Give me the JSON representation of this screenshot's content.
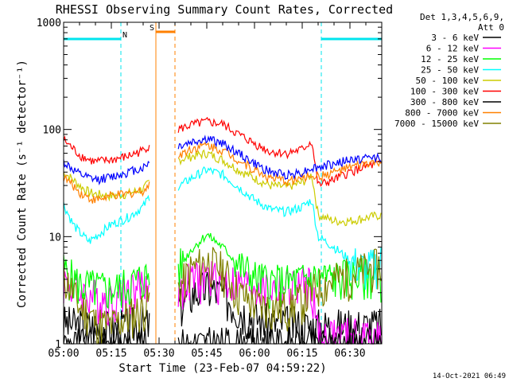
{
  "chart_data": {
    "type": "line",
    "title": "RHESSI Observing Summary Count Rates, Corrected",
    "xlabel": "Start Time (23-Feb-07 04:59:22)",
    "ylabel": "Corrected Count Rate (s⁻¹ detector⁻¹)",
    "yscale": "log",
    "ylim": [
      1,
      1000
    ],
    "xlim_minutes": [
      0,
      100
    ],
    "x_ticks": [
      "05:00",
      "05:15",
      "05:30",
      "05:45",
      "06:00",
      "06:15",
      "06:30"
    ],
    "x_tick_minutes": [
      0,
      15,
      30,
      45,
      60,
      75,
      90
    ],
    "y_ticks": [
      "1",
      "10",
      "100",
      "1000"
    ],
    "y_tick_values": [
      1,
      10,
      100,
      1000
    ],
    "legend": {
      "position": "right",
      "header": [
        "Det 1,3,4,5,6,9,",
        "Att 0"
      ]
    },
    "flags": [
      {
        "label": "N",
        "color": "#00e5ee",
        "ranges_minutes": [
          [
            0,
            18
          ],
          [
            81,
            100
          ]
        ]
      },
      {
        "label": "S",
        "color": "#ff8000",
        "ranges_minutes": [
          [
            29,
            35
          ]
        ]
      }
    ],
    "timestamp": "14-Oct-2021 06:49",
    "series": [
      {
        "name": "3 - 6 keV",
        "color": "#000000",
        "x": [
          0,
          5,
          10,
          15,
          20,
          25,
          27,
          36,
          40,
          45,
          50,
          55,
          60,
          65,
          70,
          75,
          78,
          80
        ],
        "y": [
          1.6,
          1.5,
          1.5,
          1.4,
          1.5,
          1.6,
          1.5,
          2.2,
          3.0,
          3.4,
          3.0,
          2.2,
          1.8,
          1.6,
          1.6,
          1.5,
          1.5,
          1.5
        ]
      },
      {
        "name": "6 - 12 keV",
        "color": "#ff00ff",
        "x": [
          0,
          5,
          10,
          15,
          20,
          25,
          27,
          36,
          40,
          45,
          50,
          55,
          60,
          65,
          70,
          75,
          78,
          80
        ],
        "y": [
          4.0,
          3.0,
          2.8,
          2.6,
          3.2,
          3.6,
          3.6,
          3.4,
          4.0,
          4.3,
          4.0,
          3.6,
          3.5,
          3.2,
          3.4,
          3.6,
          3.6,
          1.2
        ]
      },
      {
        "name": "12 - 25 keV",
        "color": "#00ff00",
        "x": [
          0,
          5,
          10,
          15,
          20,
          25,
          27,
          36,
          40,
          45,
          50,
          55,
          60,
          65,
          70,
          75,
          80,
          85,
          90,
          95,
          100
        ],
        "y": [
          5.0,
          3.6,
          3.4,
          3.2,
          3.6,
          4.2,
          4.4,
          5.0,
          7.5,
          10.5,
          8.0,
          5.5,
          4.2,
          3.8,
          3.8,
          4.0,
          4.2,
          4.2,
          4.3,
          4.4,
          4.4
        ]
      },
      {
        "name": "25 - 50 keV",
        "color": "#00ffff",
        "x": [
          0,
          3,
          5,
          8,
          10,
          15,
          20,
          25,
          27,
          36,
          40,
          45,
          50,
          55,
          60,
          65,
          70,
          75,
          78,
          80,
          85,
          90,
          95,
          100
        ],
        "y": [
          20,
          13,
          11,
          9,
          10,
          13,
          15,
          19,
          24,
          29,
          35,
          42,
          38,
          29,
          22,
          18,
          17,
          19,
          22,
          10,
          8,
          6,
          5,
          6
        ]
      },
      {
        "name": "50 - 100 keV",
        "color": "#cccc00",
        "x": [
          0,
          3,
          5,
          8,
          10,
          15,
          20,
          25,
          27,
          36,
          40,
          45,
          50,
          55,
          60,
          65,
          70,
          75,
          78,
          80,
          85,
          90,
          95,
          100
        ],
        "y": [
          40,
          34,
          30,
          26,
          25,
          24,
          25,
          28,
          32,
          52,
          56,
          60,
          52,
          42,
          35,
          30,
          29,
          32,
          38,
          16,
          14,
          14,
          15,
          16
        ]
      },
      {
        "name": "100 - 300 keV",
        "color": "#ff0000",
        "x": [
          0,
          3,
          5,
          8,
          10,
          15,
          20,
          25,
          27,
          36,
          40,
          45,
          50,
          55,
          60,
          65,
          70,
          75,
          78,
          80,
          85,
          90,
          95,
          100
        ],
        "y": [
          80,
          66,
          58,
          52,
          50,
          52,
          56,
          64,
          72,
          100,
          110,
          118,
          112,
          90,
          74,
          62,
          60,
          65,
          78,
          30,
          34,
          40,
          45,
          48
        ]
      },
      {
        "name": "300 - 800 keV",
        "color": "#000000",
        "x": [
          0,
          25,
          27,
          36,
          80,
          100
        ],
        "y": [
          1.0,
          1.0,
          1.0,
          1.0,
          1.0,
          1.0
        ]
      },
      {
        "name": "800 - 7000 keV",
        "color": "#ff8000",
        "x": [
          0,
          3,
          5,
          8,
          10,
          15,
          20,
          25,
          27,
          36,
          40,
          45,
          50,
          55,
          60,
          65,
          70,
          75,
          78,
          80,
          85,
          90,
          95,
          100
        ],
        "y": [
          36,
          30,
          26,
          23,
          22,
          24,
          25,
          27,
          30,
          58,
          66,
          72,
          64,
          52,
          42,
          35,
          33,
          35,
          38,
          36,
          40,
          44,
          48,
          50
        ]
      },
      {
        "name": "7000 - 15000 keV",
        "color": "#808000",
        "x": [
          0,
          3,
          5,
          8,
          10,
          15,
          20,
          25,
          27,
          36,
          40,
          45,
          50,
          55,
          60,
          65,
          70,
          75,
          78,
          80,
          85,
          90,
          95,
          100
        ],
        "y": [
          4.5,
          3.0,
          2.2,
          2.0,
          1.6,
          1.5,
          1.8,
          2.2,
          2.6,
          3.2,
          5.0,
          6.0,
          5.0,
          3.0,
          2.4,
          2.2,
          2.2,
          2.6,
          3.0,
          3.5,
          4.0,
          4.5,
          5.0,
          5.5
        ]
      },
      {
        "name": "blue (unlabelled)",
        "color": "#0000ff",
        "x": [
          0,
          3,
          5,
          8,
          10,
          15,
          20,
          25,
          27,
          36,
          40,
          45,
          50,
          55,
          60,
          65,
          70,
          75,
          78,
          80,
          85,
          90,
          95,
          100
        ],
        "y": [
          50,
          42,
          38,
          35,
          34,
          36,
          40,
          44,
          50,
          70,
          76,
          82,
          74,
          60,
          48,
          40,
          38,
          40,
          44,
          44,
          48,
          52,
          54,
          56
        ]
      }
    ]
  }
}
